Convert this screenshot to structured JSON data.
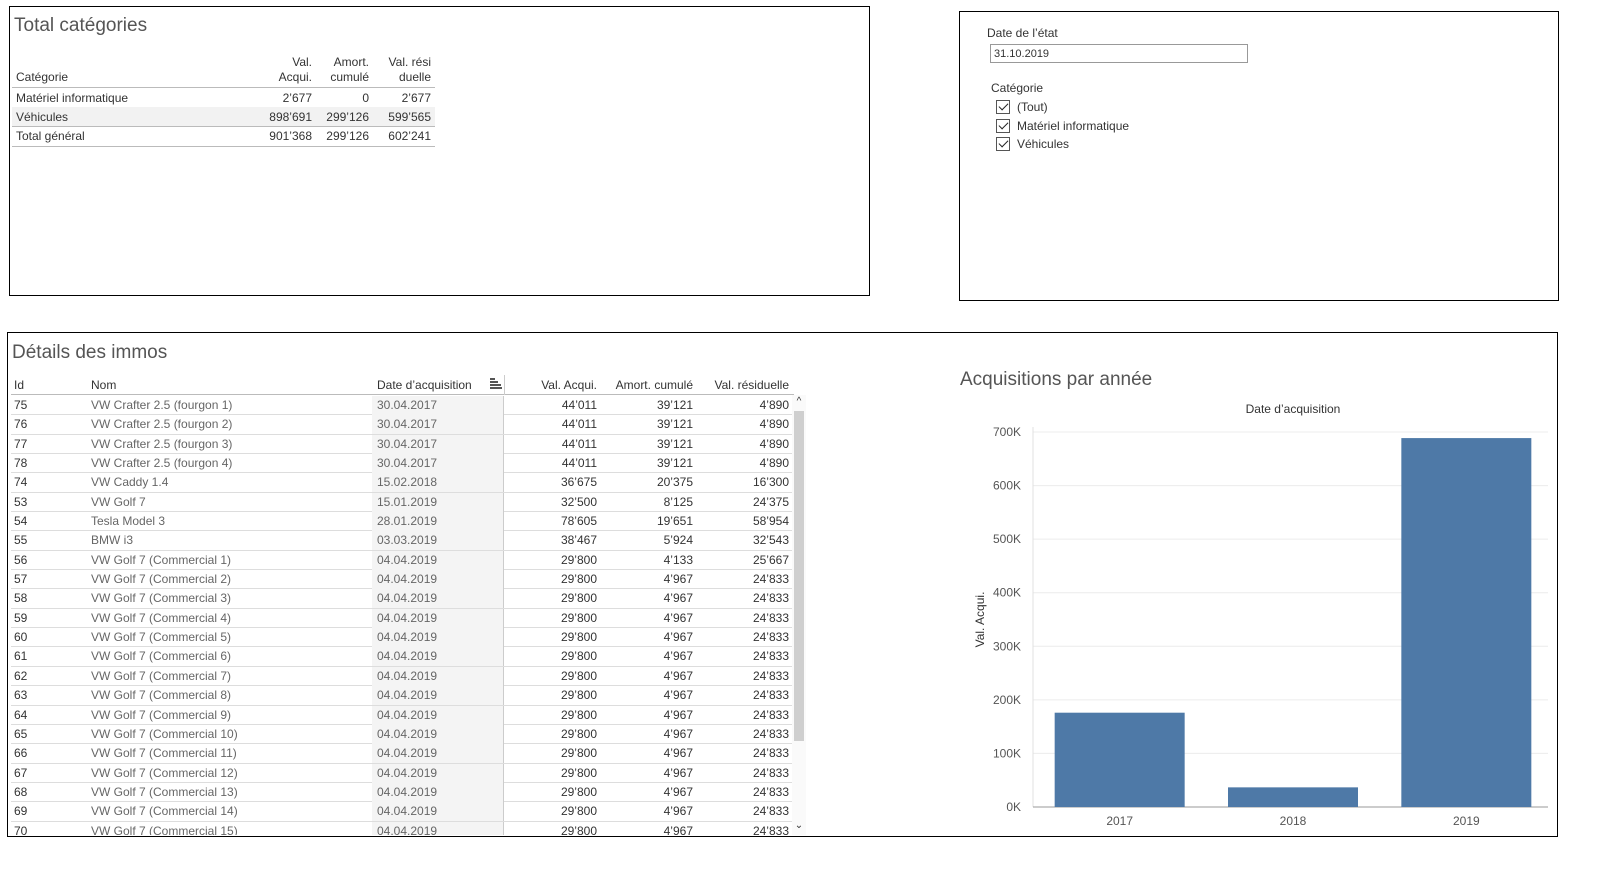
{
  "summary": {
    "title": "Total catégories",
    "headers": {
      "category": "Catégorie",
      "val_acqui_1": "Val.",
      "val_acqui_2": "Acqui.",
      "amort_1": "Amort.",
      "amort_2": "cumulé",
      "resid_1": "Val. rési",
      "resid_2": "duelle"
    },
    "rows": [
      {
        "category": "Matériel informatique",
        "val_acqui": "2’677",
        "amort": "0",
        "resid": "2’677"
      },
      {
        "category": "Véhicules",
        "val_acqui": "898’691",
        "amort": "299’126",
        "resid": "599’565"
      }
    ],
    "total": {
      "category": "Total général",
      "val_acqui": "901’368",
      "amort": "299’126",
      "resid": "602’241"
    }
  },
  "filters": {
    "date_label": "Date de l’état",
    "date_value": "31.10.2019",
    "category_label": "Catégorie",
    "options": [
      {
        "label": "(Tout)",
        "checked": true
      },
      {
        "label": "Matériel informatique",
        "checked": true
      },
      {
        "label": "Véhicules",
        "checked": true
      }
    ]
  },
  "details": {
    "title": "Détails des immos",
    "columns": {
      "id": "Id",
      "nom": "Nom",
      "date": "Date d’acquisition",
      "val_acqui": "Val. Acqui.",
      "amort": "Amort. cumulé",
      "resid": "Val. résiduelle"
    },
    "rows": [
      [
        "75",
        "VW Crafter 2.5 (fourgon 1)",
        "30.04.2017",
        "44’011",
        "39’121",
        "4’890"
      ],
      [
        "76",
        "VW Crafter 2.5 (fourgon 2)",
        "30.04.2017",
        "44’011",
        "39’121",
        "4’890"
      ],
      [
        "77",
        "VW Crafter 2.5 (fourgon 3)",
        "30.04.2017",
        "44’011",
        "39’121",
        "4’890"
      ],
      [
        "78",
        "VW Crafter 2.5 (fourgon 4)",
        "30.04.2017",
        "44’011",
        "39’121",
        "4’890"
      ],
      [
        "74",
        "VW Caddy 1.4",
        "15.02.2018",
        "36’675",
        "20’375",
        "16’300"
      ],
      [
        "53",
        "VW Golf 7",
        "15.01.2019",
        "32’500",
        "8’125",
        "24’375"
      ],
      [
        "54",
        "Tesla Model 3",
        "28.01.2019",
        "78’605",
        "19’651",
        "58’954"
      ],
      [
        "55",
        "BMW i3",
        "03.03.2019",
        "38’467",
        "5’924",
        "32’543"
      ],
      [
        "56",
        "VW Golf 7  (Commercial 1)",
        "04.04.2019",
        "29’800",
        "4’133",
        "25’667"
      ],
      [
        "57",
        "VW Golf 7  (Commercial 2)",
        "04.04.2019",
        "29’800",
        "4’967",
        "24’833"
      ],
      [
        "58",
        "VW Golf 7  (Commercial 3)",
        "04.04.2019",
        "29’800",
        "4’967",
        "24’833"
      ],
      [
        "59",
        "VW Golf 7  (Commercial 4)",
        "04.04.2019",
        "29’800",
        "4’967",
        "24’833"
      ],
      [
        "60",
        "VW Golf 7  (Commercial 5)",
        "04.04.2019",
        "29’800",
        "4’967",
        "24’833"
      ],
      [
        "61",
        "VW Golf 7  (Commercial 6)",
        "04.04.2019",
        "29’800",
        "4’967",
        "24’833"
      ],
      [
        "62",
        "VW Golf 7  (Commercial 7)",
        "04.04.2019",
        "29’800",
        "4’967",
        "24’833"
      ],
      [
        "63",
        "VW Golf 7  (Commercial 8)",
        "04.04.2019",
        "29’800",
        "4’967",
        "24’833"
      ],
      [
        "64",
        "VW Golf 7  (Commercial 9)",
        "04.04.2019",
        "29’800",
        "4’967",
        "24’833"
      ],
      [
        "65",
        "VW Golf 7  (Commercial 10)",
        "04.04.2019",
        "29’800",
        "4’967",
        "24’833"
      ],
      [
        "66",
        "VW Golf 7  (Commercial 11)",
        "04.04.2019",
        "29’800",
        "4’967",
        "24’833"
      ],
      [
        "67",
        "VW Golf 7  (Commercial 12)",
        "04.04.2019",
        "29’800",
        "4’967",
        "24’833"
      ],
      [
        "68",
        "VW Golf 7  (Commercial 13)",
        "04.04.2019",
        "29’800",
        "4’967",
        "24’833"
      ],
      [
        "69",
        "VW Golf 7  (Commercial 14)",
        "04.04.2019",
        "29’800",
        "4’967",
        "24’833"
      ],
      [
        "70",
        "VW Golf 7  (Commercial 15)",
        "04.04.2019",
        "29’800",
        "4’967",
        "24’833"
      ]
    ]
  },
  "chart_data": {
    "type": "bar",
    "title": "Acquisitions par année",
    "subtitle": "Date d’acquisition",
    "xlabel": "",
    "ylabel": "Val. Acqui.",
    "categories": [
      "2017",
      "2018",
      "2019"
    ],
    "values": [
      176044,
      36675,
      688649
    ],
    "ylim": [
      0,
      700000
    ],
    "yticks": [
      0,
      100000,
      200000,
      300000,
      400000,
      500000,
      600000,
      700000
    ],
    "ytick_labels": [
      "0K",
      "100K",
      "200K",
      "300K",
      "400K",
      "500K",
      "600K",
      "700K"
    ],
    "bar_color": "#4e79a7",
    "grid": true
  }
}
